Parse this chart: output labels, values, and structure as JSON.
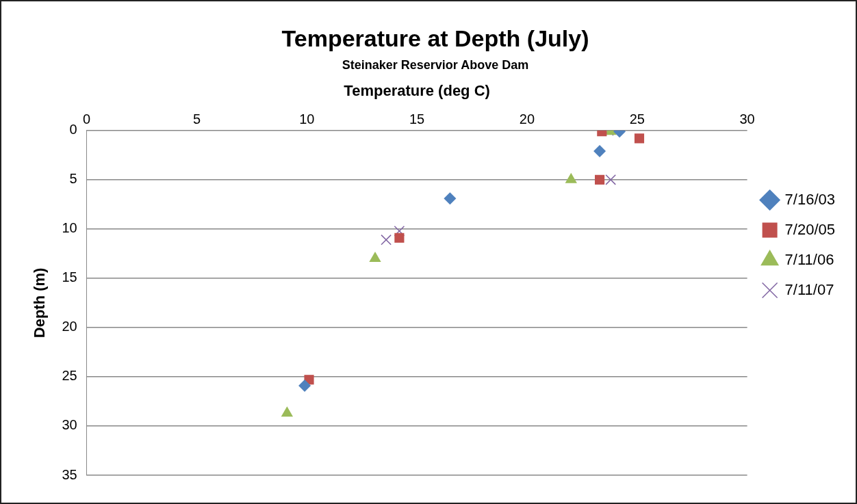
{
  "chart_data": {
    "type": "scatter",
    "title": "Temperature at Depth (July)",
    "subtitle": "Steinaker Reservior Above Dam",
    "xlabel": "Temperature (deg C)",
    "ylabel": "Depth (m)",
    "xlim": [
      0,
      30
    ],
    "xticks": [
      0,
      5,
      10,
      15,
      20,
      25,
      30
    ],
    "ylim": [
      35,
      0
    ],
    "yticks": [
      0,
      5,
      10,
      15,
      20,
      25,
      30,
      35
    ],
    "grid": "y",
    "legend": "right",
    "series": [
      {
        "name": "7/16/03",
        "color": "#4f81bd",
        "marker": "diamond",
        "x": [
          24.2,
          23.3,
          16.5,
          9.9
        ],
        "values": [
          0.1,
          2.1,
          6.9,
          25.9
        ]
      },
      {
        "name": "7/20/05",
        "color": "#c0504d",
        "marker": "square",
        "x": [
          23.4,
          25.1,
          23.3,
          14.2,
          10.1
        ],
        "values": [
          0.1,
          0.8,
          5.0,
          10.9,
          25.3
        ]
      },
      {
        "name": "7/11/06",
        "color": "#9bbb59",
        "marker": "triangle",
        "x": [
          23.8,
          22.0,
          13.1,
          9.1
        ],
        "values": [
          0.1,
          5.0,
          13.0,
          28.7
        ]
      },
      {
        "name": "7/11/07",
        "color": "#8064a2",
        "marker": "cross",
        "x": [
          23.7,
          23.8,
          14.2,
          13.6
        ],
        "values": [
          0.0,
          5.0,
          10.2,
          11.1
        ]
      }
    ]
  }
}
